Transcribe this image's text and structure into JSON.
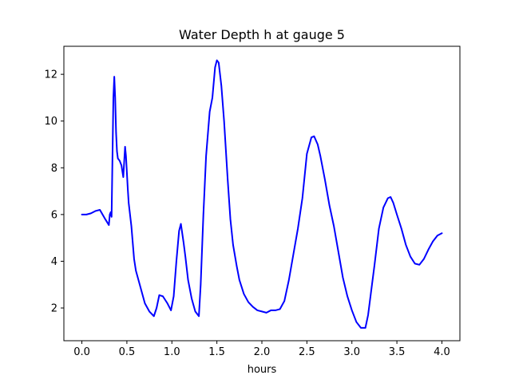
{
  "chart_data": {
    "type": "line",
    "title": "Water Depth h at gauge 5",
    "xlabel": "hours",
    "ylabel": "",
    "xlim": [
      -0.2,
      4.2
    ],
    "ylim": [
      0.6,
      13.2
    ],
    "xticks": [
      0.0,
      0.5,
      1.0,
      1.5,
      2.0,
      2.5,
      3.0,
      3.5,
      4.0
    ],
    "xtick_labels": [
      "0.0",
      "0.5",
      "1.0",
      "1.5",
      "2.0",
      "2.5",
      "3.0",
      "3.5",
      "4.0"
    ],
    "yticks": [
      2,
      4,
      6,
      8,
      10,
      12
    ],
    "ytick_labels": [
      "2",
      "4",
      "6",
      "8",
      "10",
      "12"
    ],
    "grid": false,
    "legend": false,
    "line_color": "#0000ff",
    "series": [
      {
        "x": [
          0.0,
          0.05,
          0.1,
          0.15,
          0.2,
          0.23,
          0.26,
          0.3,
          0.31,
          0.32,
          0.33,
          0.35,
          0.36,
          0.37,
          0.38,
          0.39,
          0.4,
          0.42,
          0.44,
          0.46,
          0.48,
          0.49,
          0.5,
          0.51,
          0.52,
          0.55,
          0.58,
          0.6,
          0.65,
          0.7,
          0.75,
          0.8,
          0.83,
          0.86,
          0.9,
          0.95,
          0.99,
          1.02,
          1.05,
          1.08,
          1.1,
          1.13,
          1.15,
          1.18,
          1.22,
          1.26,
          1.3,
          1.32,
          1.35,
          1.38,
          1.42,
          1.45,
          1.48,
          1.5,
          1.52,
          1.55,
          1.58,
          1.62,
          1.65,
          1.68,
          1.72,
          1.75,
          1.8,
          1.85,
          1.9,
          1.95,
          2.0,
          2.05,
          2.1,
          2.15,
          2.2,
          2.25,
          2.3,
          2.35,
          2.4,
          2.45,
          2.5,
          2.55,
          2.58,
          2.62,
          2.65,
          2.7,
          2.75,
          2.8,
          2.85,
          2.9,
          2.95,
          3.0,
          3.05,
          3.1,
          3.15,
          3.18,
          3.21,
          3.25,
          3.3,
          3.35,
          3.4,
          3.43,
          3.46,
          3.5,
          3.55,
          3.6,
          3.65,
          3.7,
          3.75,
          3.8,
          3.85,
          3.9,
          3.95,
          4.0
        ],
        "y": [
          6.0,
          6.0,
          6.05,
          6.15,
          6.2,
          6.0,
          5.8,
          5.55,
          6.0,
          6.1,
          5.9,
          11.0,
          11.9,
          11.0,
          9.5,
          8.7,
          8.4,
          8.3,
          8.1,
          7.6,
          8.9,
          8.5,
          7.8,
          7.1,
          6.5,
          5.5,
          4.1,
          3.6,
          2.9,
          2.2,
          1.85,
          1.65,
          2.0,
          2.55,
          2.5,
          2.2,
          1.9,
          2.5,
          4.0,
          5.3,
          5.6,
          4.8,
          4.2,
          3.2,
          2.4,
          1.85,
          1.65,
          3.0,
          6.0,
          8.5,
          10.4,
          11.0,
          12.3,
          12.6,
          12.5,
          11.5,
          10.0,
          7.5,
          5.8,
          4.7,
          3.8,
          3.2,
          2.6,
          2.25,
          2.05,
          1.9,
          1.85,
          1.8,
          1.9,
          1.9,
          1.95,
          2.3,
          3.2,
          4.3,
          5.4,
          6.7,
          8.6,
          9.3,
          9.35,
          9.0,
          8.5,
          7.5,
          6.4,
          5.5,
          4.4,
          3.3,
          2.5,
          1.9,
          1.4,
          1.15,
          1.15,
          1.7,
          2.6,
          3.8,
          5.4,
          6.3,
          6.7,
          6.75,
          6.5,
          6.0,
          5.4,
          4.7,
          4.2,
          3.9,
          3.85,
          4.1,
          4.5,
          4.85,
          5.1,
          5.2
        ]
      }
    ]
  }
}
